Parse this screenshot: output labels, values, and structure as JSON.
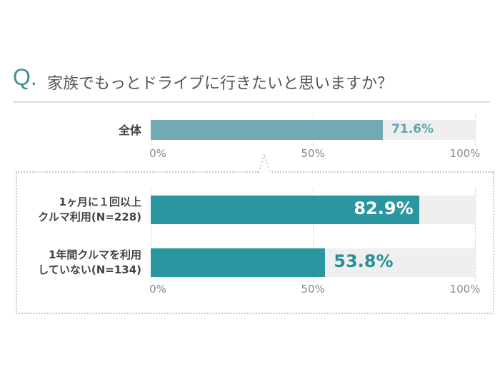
{
  "header": {
    "q_mark": "Q.",
    "question": "家族でもっとドライブに行きたいと思いますか？"
  },
  "chart_data": [
    {
      "type": "bar",
      "orientation": "horizontal",
      "categories": [
        "全体"
      ],
      "values": [
        71.6
      ],
      "value_labels": [
        "71.6%"
      ],
      "xlim": [
        0,
        100
      ],
      "ticks": [
        "0%",
        "50%",
        "100%"
      ],
      "colors": {
        "bar": "#72aab3",
        "track": "#efefef",
        "label": "#5aa7b0"
      }
    },
    {
      "type": "bar",
      "orientation": "horizontal",
      "categories": [
        [
          "1ヶ月に１回以上",
          "クルマ利用(N=228)"
        ],
        [
          "1年間クルマを利用",
          "していない(N=134)"
        ]
      ],
      "values": [
        82.9,
        53.8
      ],
      "value_labels": [
        "82.9%",
        "53.8%"
      ],
      "xlim": [
        0,
        100
      ],
      "ticks": [
        "0%",
        "50%",
        "100%"
      ],
      "colors": {
        "bar": "#2a96a0",
        "track": "#efefef",
        "label_inside": "#ffffff",
        "label_outside": "#2a8f99"
      }
    }
  ]
}
